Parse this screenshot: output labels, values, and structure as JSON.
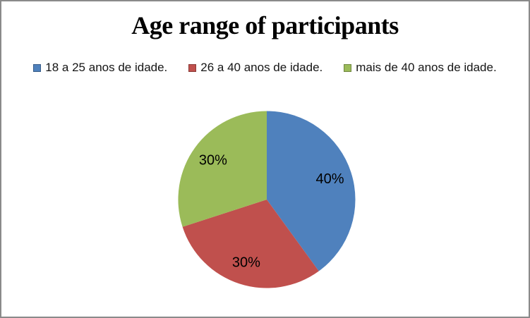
{
  "frame": {
    "background": "#ffffff",
    "border_color": "#8a8a8a"
  },
  "chart_data": {
    "type": "pie",
    "title": "Age range of participants",
    "legend_position": "top",
    "start_angle_deg": 0,
    "direction": "clockwise",
    "label_color": "#000000",
    "slices": [
      {
        "label": "18 a 25 anos de idade.",
        "value": 40,
        "display_label": "40%",
        "color": "#4f81bd"
      },
      {
        "label": "26 a 40 anos de idade.",
        "value": 30,
        "display_label": "30%",
        "color": "#c0504d"
      },
      {
        "label": "mais de 40 anos de idade.",
        "value": 30,
        "display_label": "30%",
        "color": "#9bbb59"
      }
    ]
  }
}
